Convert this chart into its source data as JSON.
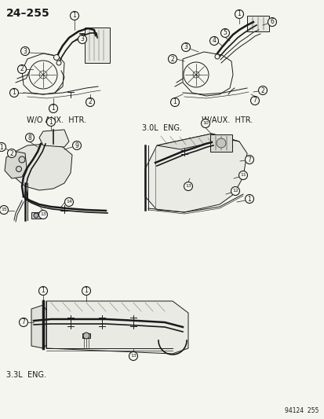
{
  "title": "24–255",
  "page_number": "94124  255",
  "bg_color": "#f5f5f0",
  "text_color": "#1a1a1a",
  "fig_width": 4.14,
  "fig_height": 5.33,
  "dpi": 100,
  "captions": {
    "top_left": "W/O AUX.  HTR.",
    "top_right": "W/AUX.  HTR.",
    "engine_30": "3.0L  ENG.",
    "engine_33": "3.3L  ENG."
  }
}
